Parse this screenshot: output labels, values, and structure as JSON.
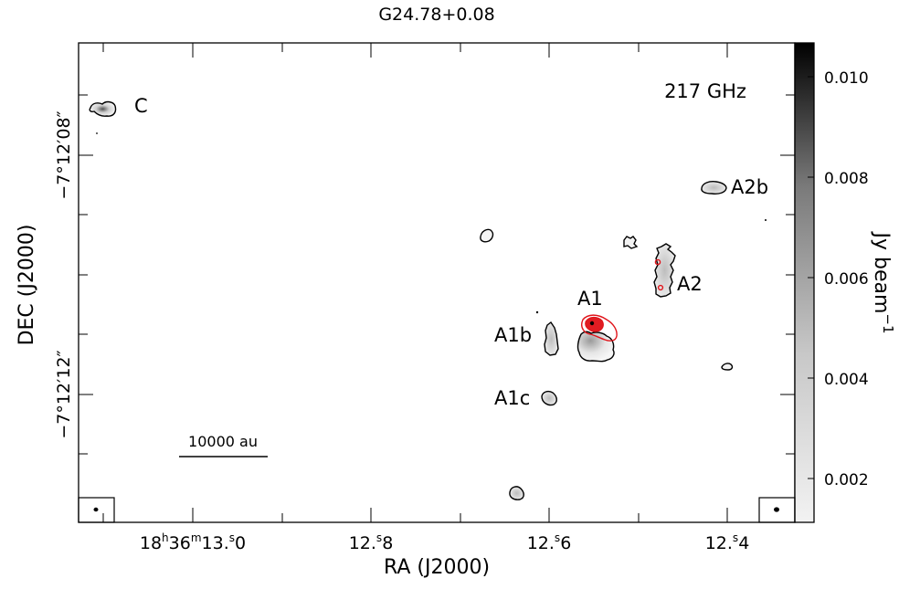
{
  "title": "G24.78+0.08",
  "frequency_label": "217 GHz",
  "x_axis": {
    "label": "RA (J2000)",
    "ticks": [
      {
        "label_main": "18",
        "sup1": "h",
        "mid1": "36",
        "sup2": "m",
        "mid2": "13.",
        "sup3": "s",
        "end": "0"
      },
      {
        "label_main": "12.",
        "sup1": "s",
        "end": "8"
      },
      {
        "label_main": "12.",
        "sup1": "s",
        "end": "6"
      },
      {
        "label_main": "12.",
        "sup1": "s",
        "end": "4"
      }
    ]
  },
  "y_axis": {
    "label": "DEC (J2000)",
    "ticks": [
      "−7°12′08″",
      "−7°12′12″"
    ]
  },
  "colorbar": {
    "label": "Jy beam",
    "label_exp": "−1",
    "ticks": [
      "0.010",
      "0.008",
      "0.006",
      "0.004",
      "0.002"
    ]
  },
  "scale_bar": "10000 au",
  "sources": [
    "C",
    "A2b",
    "A2",
    "A1",
    "A1b",
    "A1c"
  ],
  "colors": {
    "contour_red": "#e0141a",
    "frame": "#000000"
  }
}
